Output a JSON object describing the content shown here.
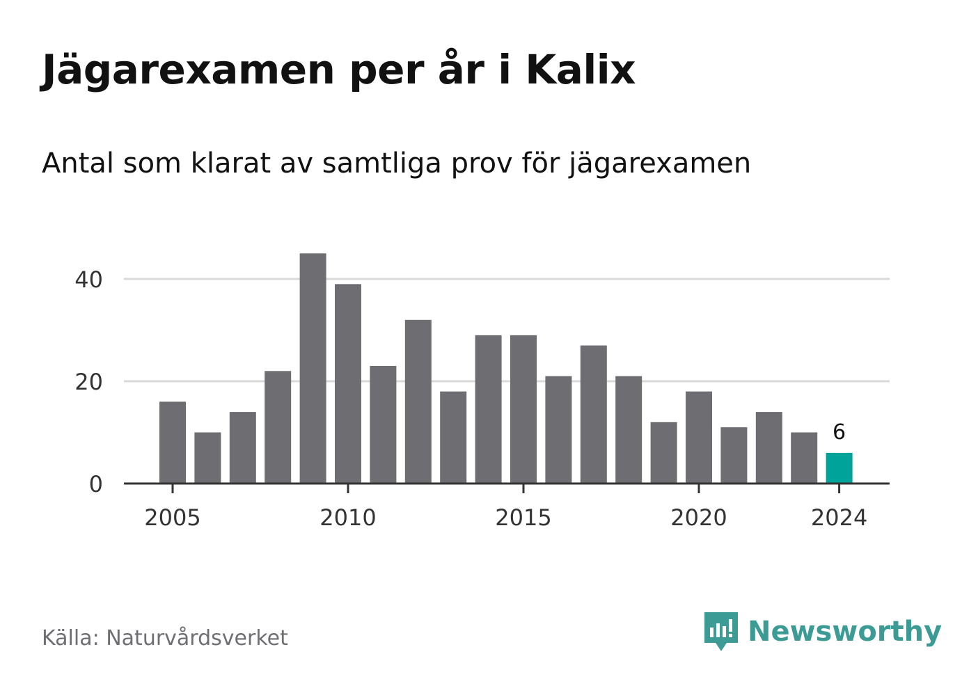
{
  "header": {
    "title": "Jägarexamen per år i Kalix",
    "subtitle": "Antal som klarat av samtliga prov för jägarexamen"
  },
  "footer": {
    "source": "Källa: Naturvårdsverket",
    "brand": "Newsworthy"
  },
  "colors": {
    "bar": "#6e6d72",
    "highlight": "#00a39a",
    "grid": "#d9d9d9",
    "axis": "#333333",
    "brand": "#3d9b95"
  },
  "chart_data": {
    "type": "bar",
    "categories": [
      "2005",
      "2006",
      "2007",
      "2008",
      "2009",
      "2010",
      "2011",
      "2012",
      "2013",
      "2014",
      "2015",
      "2016",
      "2017",
      "2018",
      "2019",
      "2020",
      "2021",
      "2022",
      "2023",
      "2024"
    ],
    "values": [
      16,
      10,
      14,
      22,
      45,
      39,
      23,
      32,
      18,
      29,
      29,
      21,
      27,
      21,
      12,
      18,
      11,
      14,
      10,
      6
    ],
    "highlight_index": 19,
    "highlight_label": "6",
    "x_ticks": [
      "2005",
      "2010",
      "2015",
      "2020",
      "2024"
    ],
    "y_ticks": [
      0,
      20,
      40
    ],
    "ylim": [
      0,
      45
    ],
    "grid": true,
    "xlabel": "",
    "ylabel": ""
  }
}
